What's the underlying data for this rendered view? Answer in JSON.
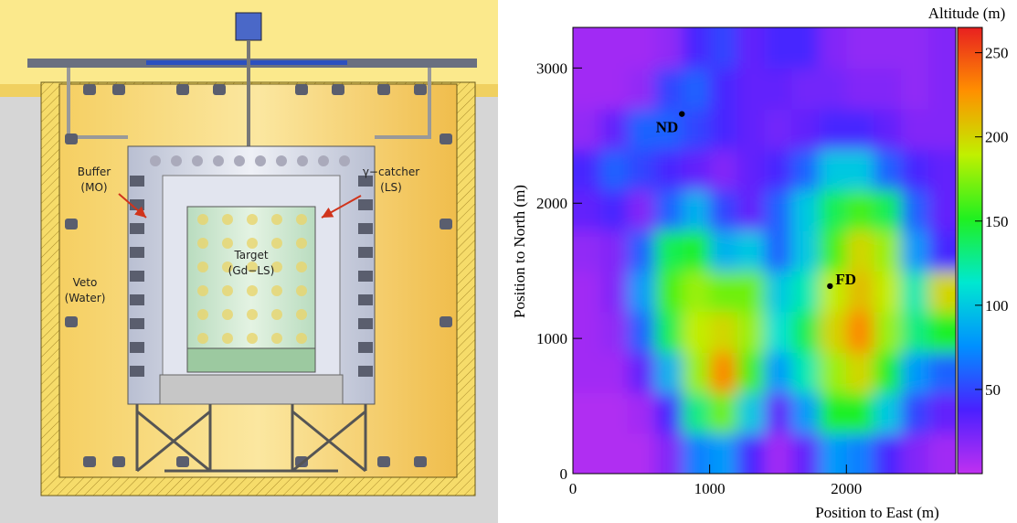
{
  "diagram": {
    "labels": [
      {
        "lines": [
          "Buffer",
          "(MO)"
        ]
      },
      {
        "lines": [
          "γ−catcher",
          "(LS)"
        ]
      },
      {
        "lines": [
          "Target",
          "(Gd−LS)"
        ]
      },
      {
        "lines": [
          "Veto",
          "(Water)"
        ]
      }
    ]
  },
  "chart_data": {
    "type": "heatmap",
    "xlabel": "Position to East (m)",
    "ylabel": "Position to North (m)",
    "colorbar_label": "Altitude (m)",
    "xlim": [
      0,
      2800
    ],
    "ylim": [
      0,
      3300
    ],
    "xticks": [
      0,
      1000,
      2000
    ],
    "yticks": [
      0,
      1000,
      2000,
      3000
    ],
    "clim": [
      0,
      265
    ],
    "cticks": [
      50,
      100,
      150,
      200,
      250
    ],
    "colorscale": [
      "#c030f0",
      "#4a20ff",
      "#0090ff",
      "#00e8d0",
      "#20f020",
      "#c0f000",
      "#ff9000",
      "#e82020"
    ],
    "x": [
      100,
      300,
      500,
      700,
      900,
      1100,
      1300,
      1500,
      1700,
      1900,
      2100,
      2300,
      2500,
      2700
    ],
    "y": [
      150,
      450,
      750,
      1050,
      1350,
      1650,
      1950,
      2250,
      2550,
      2850,
      3150
    ],
    "z": [
      [
        5,
        5,
        5,
        20,
        70,
        80,
        40,
        10,
        30,
        80,
        70,
        40,
        20,
        10
      ],
      [
        5,
        5,
        10,
        40,
        130,
        170,
        100,
        30,
        80,
        150,
        150,
        100,
        50,
        30
      ],
      [
        10,
        10,
        30,
        90,
        180,
        230,
        160,
        80,
        120,
        180,
        200,
        150,
        80,
        60
      ],
      [
        10,
        15,
        60,
        140,
        190,
        200,
        180,
        110,
        140,
        200,
        230,
        180,
        130,
        150
      ],
      [
        10,
        20,
        80,
        160,
        180,
        170,
        170,
        100,
        120,
        190,
        210,
        190,
        120,
        200
      ],
      [
        15,
        20,
        60,
        140,
        150,
        90,
        100,
        60,
        100,
        160,
        200,
        180,
        80,
        40
      ],
      [
        30,
        40,
        20,
        60,
        90,
        50,
        30,
        60,
        100,
        140,
        160,
        140,
        60,
        30
      ],
      [
        40,
        60,
        50,
        40,
        30,
        20,
        30,
        40,
        60,
        100,
        100,
        60,
        40,
        30
      ],
      [
        15,
        30,
        60,
        60,
        50,
        40,
        30,
        25,
        30,
        40,
        40,
        30,
        20,
        20
      ],
      [
        10,
        10,
        15,
        50,
        60,
        40,
        30,
        30,
        25,
        25,
        20,
        20,
        15,
        20
      ],
      [
        10,
        10,
        10,
        15,
        40,
        50,
        30,
        40,
        40,
        20,
        15,
        15,
        15,
        20
      ]
    ],
    "points": {
      "x": [
        797,
        1880
      ],
      "y": [
        2660,
        1387
      ],
      "labels": [
        "ND",
        "FD"
      ]
    }
  }
}
